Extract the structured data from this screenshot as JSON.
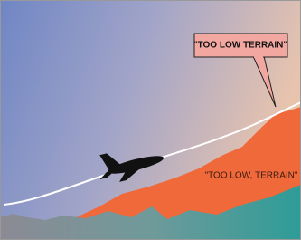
{
  "callouts": [
    {
      "text": "\"TOO LOW TERRAIN\""
    },
    {
      "text": "\"TOO LOW, TERRAIN\""
    }
  ]
}
